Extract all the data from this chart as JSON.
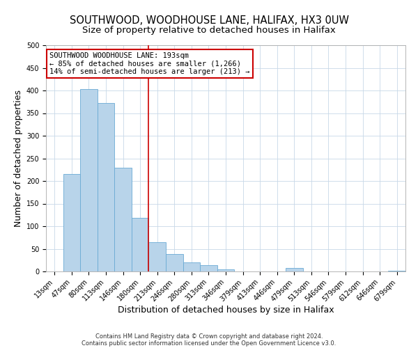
{
  "title": "SOUTHWOOD, WOODHOUSE LANE, HALIFAX, HX3 0UW",
  "subtitle": "Size of property relative to detached houses in Halifax",
  "xlabel": "Distribution of detached houses by size in Halifax",
  "ylabel": "Number of detached properties",
  "bar_labels": [
    "13sqm",
    "47sqm",
    "80sqm",
    "113sqm",
    "146sqm",
    "180sqm",
    "213sqm",
    "246sqm",
    "280sqm",
    "313sqm",
    "346sqm",
    "379sqm",
    "413sqm",
    "446sqm",
    "479sqm",
    "513sqm",
    "546sqm",
    "579sqm",
    "612sqm",
    "646sqm",
    "679sqm"
  ],
  "bar_values": [
    0,
    215,
    403,
    372,
    229,
    119,
    65,
    39,
    20,
    14,
    5,
    0,
    0,
    0,
    7,
    0,
    0,
    0,
    0,
    0,
    2
  ],
  "bar_color": "#b8d4ea",
  "bar_edge_color": "#6aaad4",
  "vline_x": 6.0,
  "vline_color": "#cc0000",
  "annotation_title": "SOUTHWOOD WOODHOUSE LANE: 193sqm",
  "annotation_line1": "← 85% of detached houses are smaller (1,266)",
  "annotation_line2": "14% of semi-detached houses are larger (213) →",
  "annotation_box_color": "#ffffff",
  "annotation_box_edge": "#cc0000",
  "ylim": [
    0,
    500
  ],
  "yticks": [
    0,
    50,
    100,
    150,
    200,
    250,
    300,
    350,
    400,
    450,
    500
  ],
  "footer1": "Contains HM Land Registry data © Crown copyright and database right 2024.",
  "footer2": "Contains public sector information licensed under the Open Government Licence v3.0.",
  "background_color": "#ffffff",
  "grid_color": "#c8d8e8",
  "title_fontsize": 10.5,
  "subtitle_fontsize": 9.5,
  "axis_label_fontsize": 9,
  "tick_fontsize": 7,
  "annotation_fontsize": 7.5,
  "footer_fontsize": 6
}
